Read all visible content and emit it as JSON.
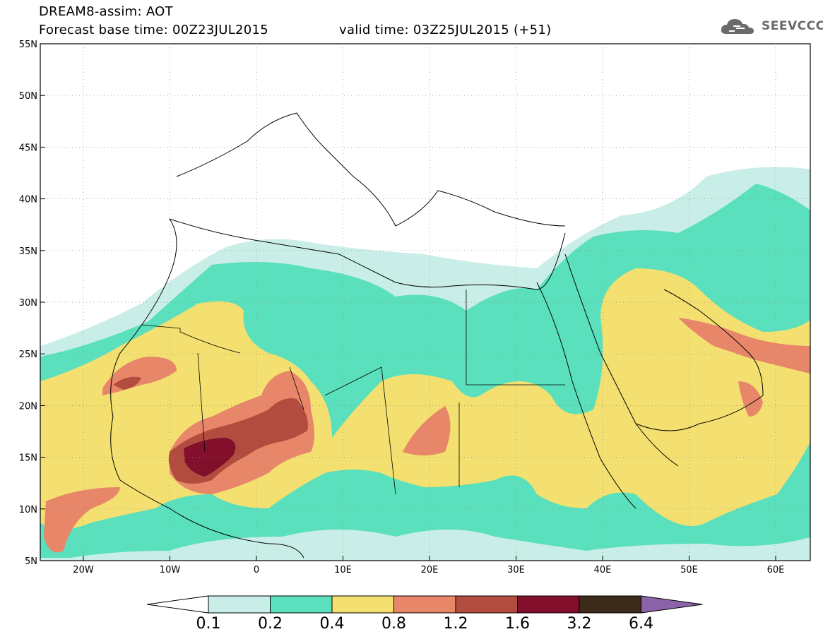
{
  "header": {
    "title": "DREAM8-assim: AOT",
    "base_time": "Forecast base time: 00Z23JUL2015",
    "valid_time": "valid time: 03Z25JUL2015 (+51)"
  },
  "logo": {
    "text": "SEEVCCC",
    "icon": "cloud-icon"
  },
  "map": {
    "lat_labels": [
      "55N",
      "50N",
      "45N",
      "40N",
      "35N",
      "30N",
      "25N",
      "20N",
      "15N",
      "10N",
      "5N"
    ],
    "lon_labels": [
      "20W",
      "10W",
      "0",
      "10E",
      "20E",
      "30E",
      "40E",
      "50E",
      "60E"
    ]
  },
  "colorbar": {
    "labels": [
      "0.1",
      "0.2",
      "0.4",
      "0.8",
      "1.2",
      "1.6",
      "3.2",
      "6.4"
    ],
    "colors": [
      "#ffffff",
      "#c9eee8",
      "#5be0bd",
      "#f3e070",
      "#e8866a",
      "#b24c3f",
      "#820f2b",
      "#3d2b1a",
      "#8b63a8"
    ]
  },
  "colors": {
    "c01": "#c9eee8",
    "c02": "#5be0bd",
    "c04": "#f3e070",
    "c08": "#e8866a",
    "c12": "#b24c3f",
    "c16": "#820f2b"
  }
}
